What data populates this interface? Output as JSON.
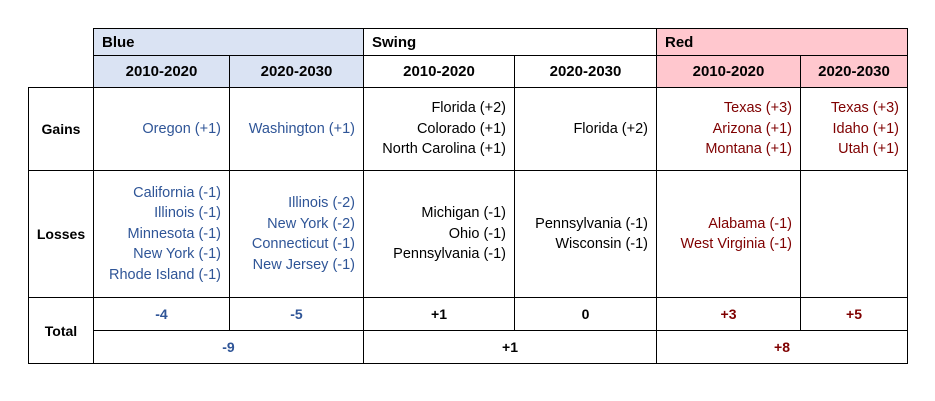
{
  "groups": {
    "blue": "Blue",
    "swing": "Swing",
    "red": "Red"
  },
  "periods": [
    "2010-2020",
    "2020-2030"
  ],
  "row_labels": {
    "gains": "Gains",
    "losses": "Losses",
    "total": "Total"
  },
  "gains": {
    "blue_2010": [
      "Oregon (+1)"
    ],
    "blue_2020": [
      "Washington (+1)"
    ],
    "swing_2010": [
      "Florida (+2)",
      "Colorado (+1)",
      "North Carolina (+1)"
    ],
    "swing_2020": [
      "Florida (+2)"
    ],
    "red_2010": [
      "Texas (+3)",
      "Arizona (+1)",
      "Montana (+1)"
    ],
    "red_2020": [
      "Texas (+3)",
      "Idaho (+1)",
      "Utah (+1)"
    ]
  },
  "losses": {
    "blue_2010": [
      "California (-1)",
      "Illinois (-1)",
      "Minnesota (-1)",
      "New York (-1)",
      "Rhode Island (-1)"
    ],
    "blue_2020": [
      "Illinois (-2)",
      "New York (-2)",
      "Connecticut (-1)",
      "New Jersey (-1)"
    ],
    "swing_2010": [
      "Michigan (-1)",
      "Ohio (-1)",
      "Pennsylvania (-1)"
    ],
    "swing_2020": [
      "Pennsylvania (-1)",
      "Wisconsin (-1)"
    ],
    "red_2010": [
      "Alabama (-1)",
      "West Virginia (-1)"
    ],
    "red_2020": []
  },
  "totals": {
    "blue_2010": "-4",
    "blue_2020": "-5",
    "swing_2010": "+1",
    "swing_2020": "0",
    "red_2010": "+3",
    "red_2020": "+5",
    "blue_combined": "-9",
    "swing_combined": "+1",
    "red_combined": "+8"
  },
  "colors": {
    "blue_text": "#2f5597",
    "red_text": "#7f0000",
    "blue_header_bg": "#dae3f3",
    "red_header_bg": "#ffc7ce"
  }
}
